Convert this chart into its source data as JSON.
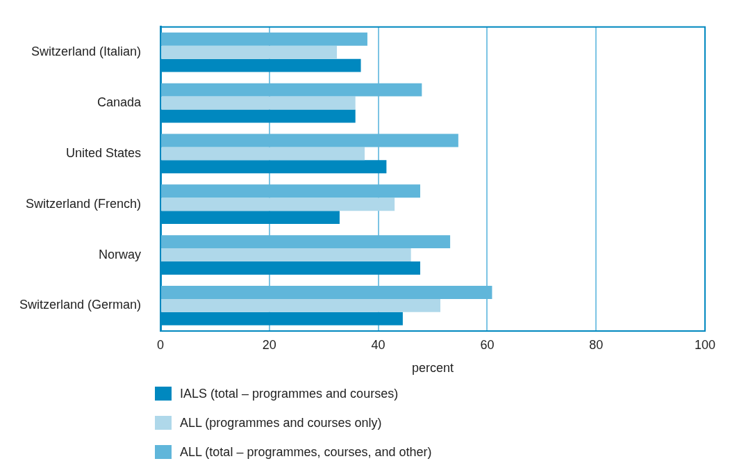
{
  "chart_data": {
    "type": "bar",
    "orientation": "horizontal",
    "categories": [
      "Switzerland (Italian)",
      "Canada",
      "United States",
      "Switzerland (French)",
      "Norway",
      "Switzerland (German)"
    ],
    "series": [
      {
        "name": "IALS (total – programmes and courses)",
        "color": "#0088bf",
        "values": [
          36.8,
          35.8,
          41.5,
          32.9,
          47.7,
          44.5
        ]
      },
      {
        "name": "ALL (programmes and courses only)",
        "color": "#afd8ea",
        "values": [
          32.4,
          35.8,
          37.5,
          43.0,
          46.0,
          51.4
        ]
      },
      {
        "name": "ALL (total – programmes, courses, and other)",
        "color": "#60b6da",
        "values": [
          38.0,
          48.0,
          54.7,
          47.7,
          53.2,
          60.9
        ]
      }
    ],
    "xlabel": "percent",
    "xlim": [
      0,
      100
    ],
    "xticks": [
      0,
      20,
      40,
      60,
      80,
      100
    ],
    "grid": "x",
    "legend": "bottom"
  }
}
